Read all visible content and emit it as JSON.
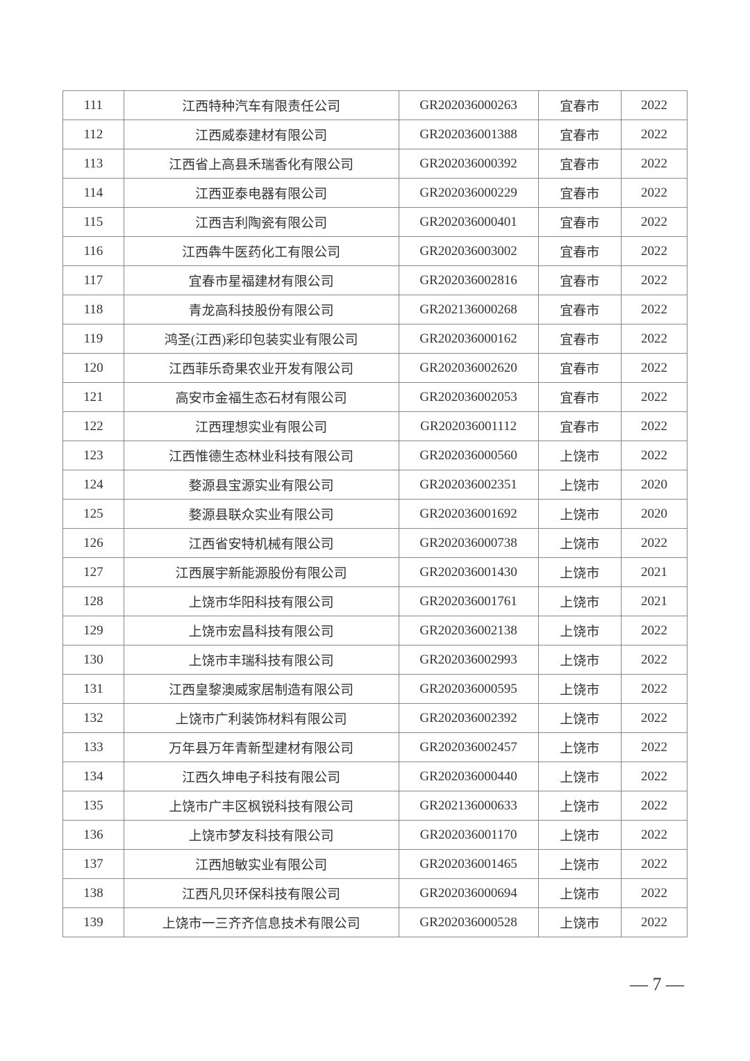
{
  "table": {
    "rows": [
      {
        "num": "111",
        "company": "江西特种汽车有限责任公司",
        "code": "GR202036000263",
        "city": "宜春市",
        "year": "2022"
      },
      {
        "num": "112",
        "company": "江西威泰建材有限公司",
        "code": "GR202036001388",
        "city": "宜春市",
        "year": "2022"
      },
      {
        "num": "113",
        "company": "江西省上高县禾瑞香化有限公司",
        "code": "GR202036000392",
        "city": "宜春市",
        "year": "2022"
      },
      {
        "num": "114",
        "company": "江西亚泰电器有限公司",
        "code": "GR202036000229",
        "city": "宜春市",
        "year": "2022"
      },
      {
        "num": "115",
        "company": "江西吉利陶瓷有限公司",
        "code": "GR202036000401",
        "city": "宜春市",
        "year": "2022"
      },
      {
        "num": "116",
        "company": "江西犇牛医药化工有限公司",
        "code": "GR202036003002",
        "city": "宜春市",
        "year": "2022"
      },
      {
        "num": "117",
        "company": "宜春市星福建材有限公司",
        "code": "GR202036002816",
        "city": "宜春市",
        "year": "2022"
      },
      {
        "num": "118",
        "company": "青龙高科技股份有限公司",
        "code": "GR202136000268",
        "city": "宜春市",
        "year": "2022"
      },
      {
        "num": "119",
        "company": "鸿圣(江西)彩印包装实业有限公司",
        "code": "GR202036000162",
        "city": "宜春市",
        "year": "2022"
      },
      {
        "num": "120",
        "company": "江西菲乐奇果农业开发有限公司",
        "code": "GR202036002620",
        "city": "宜春市",
        "year": "2022"
      },
      {
        "num": "121",
        "company": "高安市金福生态石材有限公司",
        "code": "GR202036002053",
        "city": "宜春市",
        "year": "2022"
      },
      {
        "num": "122",
        "company": "江西理想实业有限公司",
        "code": "GR202036001112",
        "city": "宜春市",
        "year": "2022"
      },
      {
        "num": "123",
        "company": "江西惟德生态林业科技有限公司",
        "code": "GR202036000560",
        "city": "上饶市",
        "year": "2022"
      },
      {
        "num": "124",
        "company": "婺源县宝源实业有限公司",
        "code": "GR202036002351",
        "city": "上饶市",
        "year": "2020"
      },
      {
        "num": "125",
        "company": "婺源县联众实业有限公司",
        "code": "GR202036001692",
        "city": "上饶市",
        "year": "2020"
      },
      {
        "num": "126",
        "company": "江西省安特机械有限公司",
        "code": "GR202036000738",
        "city": "上饶市",
        "year": "2022"
      },
      {
        "num": "127",
        "company": "江西展宇新能源股份有限公司",
        "code": "GR202036001430",
        "city": "上饶市",
        "year": "2021"
      },
      {
        "num": "128",
        "company": "上饶市华阳科技有限公司",
        "code": "GR202036001761",
        "city": "上饶市",
        "year": "2021"
      },
      {
        "num": "129",
        "company": "上饶市宏昌科技有限公司",
        "code": "GR202036002138",
        "city": "上饶市",
        "year": "2022"
      },
      {
        "num": "130",
        "company": "上饶市丰瑞科技有限公司",
        "code": "GR202036002993",
        "city": "上饶市",
        "year": "2022"
      },
      {
        "num": "131",
        "company": "江西皇黎澳威家居制造有限公司",
        "code": "GR202036000595",
        "city": "上饶市",
        "year": "2022"
      },
      {
        "num": "132",
        "company": "上饶市广利装饰材料有限公司",
        "code": "GR202036002392",
        "city": "上饶市",
        "year": "2022"
      },
      {
        "num": "133",
        "company": "万年县万年青新型建材有限公司",
        "code": "GR202036002457",
        "city": "上饶市",
        "year": "2022"
      },
      {
        "num": "134",
        "company": "江西久坤电子科技有限公司",
        "code": "GR202036000440",
        "city": "上饶市",
        "year": "2022"
      },
      {
        "num": "135",
        "company": "上饶市广丰区枫锐科技有限公司",
        "code": "GR202136000633",
        "city": "上饶市",
        "year": "2022"
      },
      {
        "num": "136",
        "company": "上饶市梦友科技有限公司",
        "code": "GR202036001170",
        "city": "上饶市",
        "year": "2022"
      },
      {
        "num": "137",
        "company": "江西旭敏实业有限公司",
        "code": "GR202036001465",
        "city": "上饶市",
        "year": "2022"
      },
      {
        "num": "138",
        "company": "江西凡贝环保科技有限公司",
        "code": "GR202036000694",
        "city": "上饶市",
        "year": "2022"
      },
      {
        "num": "139",
        "company": "上饶市一三齐齐信息技术有限公司",
        "code": "GR202036000528",
        "city": "上饶市",
        "year": "2022"
      }
    ]
  },
  "page_number": "— 7 —"
}
